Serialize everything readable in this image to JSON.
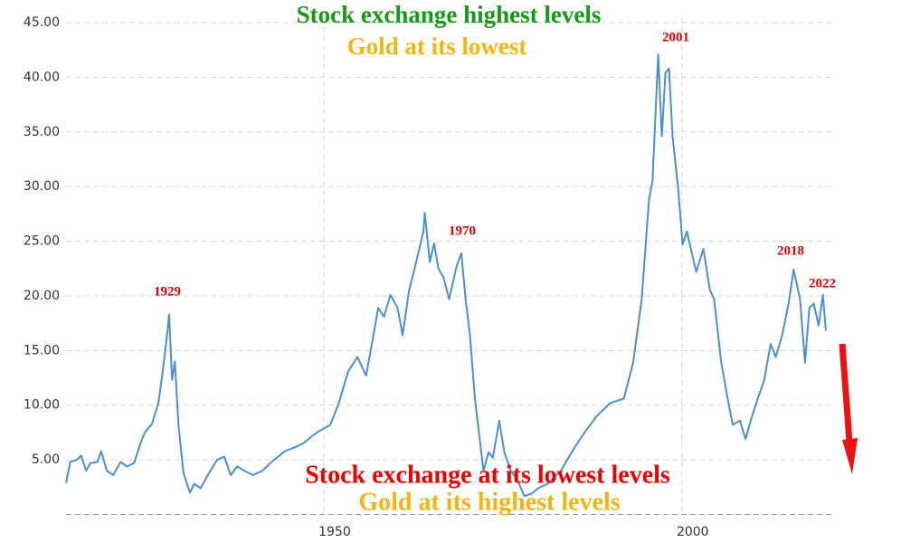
{
  "chart_data": {
    "type": "line",
    "x": [
      1914.0,
      1914.6,
      1915.5,
      1916.1,
      1916.8,
      1917.4,
      1918.4,
      1918.9,
      1919.7,
      1920.6,
      1921.6,
      1922.5,
      1923.5,
      1924.4,
      1925.0,
      1926.0,
      1926.9,
      1927.5,
      1928.1,
      1928.4,
      1928.8,
      1929.2,
      1929.7,
      1930.4,
      1931.3,
      1931.9,
      1932.8,
      1933.8,
      1935.1,
      1936.1,
      1937.0,
      1937.9,
      1938.9,
      1940.1,
      1941.4,
      1942.7,
      1944.6,
      1945.8,
      1947.1,
      1949.0,
      1950.9,
      1952.1,
      1953.4,
      1954.7,
      1955.9,
      1956.6,
      1957.6,
      1958.4,
      1959.3,
      1960.3,
      1961.0,
      1961.9,
      1962.9,
      1963.9,
      1964.1,
      1964.8,
      1965.4,
      1966.0,
      1966.7,
      1967.5,
      1968.5,
      1969.2,
      1969.8,
      1970.4,
      1971.1,
      1971.7,
      1972.3,
      1973.0,
      1973.6,
      1974.5,
      1975.2,
      1976.1,
      1977.0,
      1978.0,
      1979.0,
      1979.9,
      1981.2,
      1983.1,
      1984.6,
      1986.2,
      1988.1,
      1990.0,
      1991.9,
      1993.2,
      1994.4,
      1995.4,
      1995.9,
      1996.7,
      1997.2,
      1997.7,
      1998.2,
      1998.7,
      1999.5,
      2000.1,
      2000.7,
      2001.4,
      2002.0,
      2003.0,
      2003.9,
      2004.5,
      2005.5,
      2006.4,
      2007.1,
      2008.1,
      2008.9,
      2009.8,
      2010.6,
      2011.5,
      2012.4,
      2013.1,
      2014.0,
      2014.9,
      2015.6,
      2016.5,
      2017.2,
      2017.8,
      2018.4,
      2019.1,
      2019.7,
      2020.1
    ],
    "values": [
      2.9,
      4.8,
      5.0,
      5.4,
      4.0,
      4.7,
      4.8,
      5.8,
      4.0,
      3.6,
      4.8,
      4.4,
      4.7,
      6.5,
      7.5,
      8.3,
      10.2,
      13.1,
      16.4,
      18.3,
      12.3,
      14.0,
      8.2,
      3.8,
      2.0,
      2.8,
      2.4,
      3.6,
      5.0,
      5.3,
      3.6,
      4.4,
      4.0,
      3.6,
      4.0,
      4.8,
      5.8,
      6.1,
      6.5,
      7.5,
      8.2,
      10.2,
      13.1,
      14.4,
      12.7,
      15.2,
      18.9,
      18.1,
      20.1,
      18.9,
      16.4,
      20.5,
      23.1,
      25.9,
      27.6,
      23.1,
      24.8,
      22.5,
      21.7,
      19.7,
      22.6,
      23.9,
      19.7,
      16.4,
      10.6,
      7.3,
      4.0,
      5.7,
      5.2,
      8.6,
      5.7,
      4.0,
      3.2,
      1.7,
      1.9,
      2.4,
      2.8,
      4.0,
      5.7,
      7.3,
      9.0,
      10.2,
      10.6,
      13.9,
      19.7,
      28.8,
      30.5,
      42.1,
      34.6,
      40.4,
      40.8,
      34.6,
      29.7,
      24.7,
      25.9,
      23.9,
      22.2,
      24.3,
      20.6,
      19.7,
      13.9,
      10.6,
      8.2,
      8.6,
      6.9,
      9.0,
      10.6,
      12.3,
      15.6,
      14.4,
      16.4,
      19.3,
      22.4,
      19.7,
      13.9,
      18.9,
      19.3,
      17.3,
      20.1,
      16.8
    ],
    "color": "#4a8fd6",
    "xlim": [
      1914,
      2021
    ],
    "ylim": [
      0,
      45
    ],
    "xticks": [
      1950,
      2000
    ],
    "yticks": [
      {
        "value": 5,
        "label": "5.00"
      },
      {
        "value": 10,
        "label": "10.00"
      },
      {
        "value": 15,
        "label": "15.00"
      },
      {
        "value": 20,
        "label": "20.00"
      },
      {
        "value": 25,
        "label": "25.00"
      },
      {
        "value": 30,
        "label": "30.00"
      },
      {
        "value": 35,
        "label": "35.00"
      },
      {
        "value": 40,
        "label": "40.00"
      },
      {
        "value": 45,
        "label": "45.00"
      }
    ],
    "grid": true,
    "annotations": [
      {
        "text": "Stock exchange highest levels",
        "color": "#169b16"
      },
      {
        "text": "Gold at its lowest",
        "color": "#f2b50f"
      },
      {
        "text": "1929",
        "color": "#e00000"
      },
      {
        "text": "1970",
        "color": "#e00000"
      },
      {
        "text": "2001",
        "color": "#e00000"
      },
      {
        "text": "2018",
        "color": "#e00000"
      },
      {
        "text": "2022",
        "color": "#e00000"
      },
      {
        "text": "Stock exchange at its lowest levels",
        "color": "#ee0000"
      },
      {
        "text": "Gold at its highest levels",
        "color": "#f2b50f"
      }
    ]
  }
}
